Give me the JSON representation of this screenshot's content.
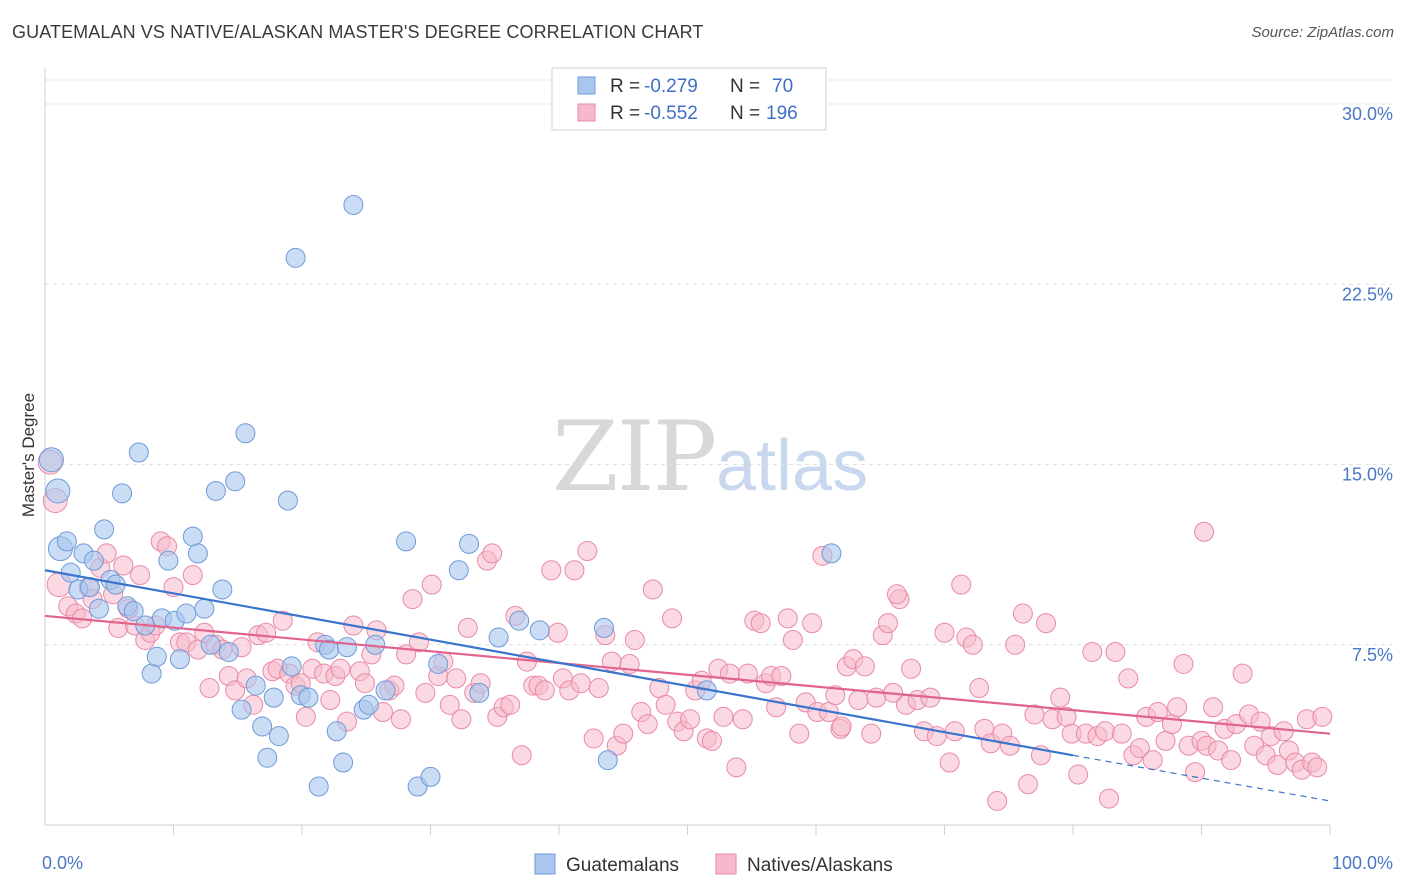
{
  "title": "GUATEMALAN VS NATIVE/ALASKAN MASTER'S DEGREE CORRELATION CHART",
  "source": "Source: ZipAtlas.com",
  "watermark": {
    "part1": "ZIP",
    "part2": "atlas"
  },
  "colors": {
    "guatemalan_fill": "#a9c6ee",
    "guatemalan_stroke": "#6f9ad8",
    "guatemalan_line": "#3a74cc",
    "native_fill": "#f6b9cb",
    "native_stroke": "#e98aa8",
    "native_line": "#e0648e",
    "tick_label": "#4a78c4",
    "grid": "#dedede"
  },
  "legend": {
    "rows": [
      {
        "r_label": "R =",
        "r_value": "-0.279",
        "n_label": "N =",
        "n_value": "70"
      },
      {
        "r_label": "R =",
        "r_value": "-0.552",
        "n_label": "N =",
        "n_value": "196"
      }
    ]
  },
  "chart_data": {
    "type": "scatter",
    "title": "GUATEMALAN VS NATIVE/ALASKAN MASTER'S DEGREE CORRELATION CHART",
    "xlabel": "",
    "ylabel": "Master's Degree",
    "xlim": [
      0,
      100
    ],
    "ylim": [
      0,
      31
    ],
    "y_ticks": [
      {
        "value": 7.5,
        "label": "7.5%"
      },
      {
        "value": 15.0,
        "label": "15.0%"
      },
      {
        "value": 22.5,
        "label": "22.5%"
      },
      {
        "value": 30.0,
        "label": "30.0%"
      }
    ],
    "x_tick_labels": [
      {
        "value": 0,
        "label": "0.0%"
      },
      {
        "value": 100,
        "label": "100.0%"
      }
    ],
    "grid": true,
    "legend_position": "top-center",
    "series": [
      {
        "name": "Guatemalans",
        "trend": {
          "x0": 0,
          "y0": 10.6,
          "x1": 80,
          "y1": 2.9,
          "dashed_to_x": 100,
          "dashed_to_y": 1.0
        },
        "points": [
          [
            0.5,
            15.2
          ],
          [
            1,
            13.9
          ],
          [
            1.2,
            11.5
          ],
          [
            1.7,
            11.8
          ],
          [
            2,
            10.5
          ],
          [
            2.6,
            9.8
          ],
          [
            3,
            11.3
          ],
          [
            3.5,
            9.9
          ],
          [
            3.8,
            11.0
          ],
          [
            4.2,
            9.0
          ],
          [
            4.6,
            12.3
          ],
          [
            5.1,
            10.2
          ],
          [
            5.5,
            10.0
          ],
          [
            6,
            13.8
          ],
          [
            6.4,
            9.1
          ],
          [
            6.9,
            8.9
          ],
          [
            7.3,
            15.5
          ],
          [
            7.8,
            8.3
          ],
          [
            8.3,
            6.3
          ],
          [
            8.7,
            7.0
          ],
          [
            9.1,
            8.6
          ],
          [
            9.6,
            11.0
          ],
          [
            10.1,
            8.5
          ],
          [
            10.5,
            6.9
          ],
          [
            11,
            8.8
          ],
          [
            11.5,
            12.0
          ],
          [
            11.9,
            11.3
          ],
          [
            12.4,
            9.0
          ],
          [
            12.9,
            7.5
          ],
          [
            13.3,
            13.9
          ],
          [
            13.8,
            9.8
          ],
          [
            14.3,
            7.2
          ],
          [
            14.8,
            14.3
          ],
          [
            15.3,
            4.8
          ],
          [
            15.6,
            16.3
          ],
          [
            16.4,
            5.8
          ],
          [
            16.9,
            4.1
          ],
          [
            17.3,
            2.8
          ],
          [
            17.8,
            5.3
          ],
          [
            18.2,
            3.7
          ],
          [
            18.9,
            13.5
          ],
          [
            19.2,
            6.6
          ],
          [
            19.5,
            23.6
          ],
          [
            19.9,
            5.4
          ],
          [
            20.5,
            5.3
          ],
          [
            21.3,
            1.6
          ],
          [
            21.8,
            7.5
          ],
          [
            22.1,
            7.3
          ],
          [
            22.7,
            3.9
          ],
          [
            23.2,
            2.6
          ],
          [
            23.5,
            7.4
          ],
          [
            24,
            25.8
          ],
          [
            24.8,
            4.8
          ],
          [
            25.2,
            5.0
          ],
          [
            25.7,
            7.5
          ],
          [
            26.5,
            5.6
          ],
          [
            28.1,
            11.8
          ],
          [
            29,
            1.6
          ],
          [
            30,
            2.0
          ],
          [
            30.6,
            6.7
          ],
          [
            32.2,
            10.6
          ],
          [
            33,
            11.7
          ],
          [
            33.8,
            5.5
          ],
          [
            35.3,
            7.8
          ],
          [
            36.9,
            8.5
          ],
          [
            38.5,
            8.1
          ],
          [
            43.5,
            8.2
          ],
          [
            43.8,
            2.7
          ],
          [
            51.5,
            5.6
          ],
          [
            61.2,
            11.3
          ]
        ]
      },
      {
        "name": "Natives/Alaskans",
        "trend": {
          "x0": 0,
          "y0": 8.7,
          "x1": 100,
          "y1": 3.8
        },
        "points": [
          [
            0.4,
            15.1
          ],
          [
            0.8,
            13.5
          ],
          [
            1.1,
            10.0
          ],
          [
            1.8,
            9.1
          ],
          [
            2.4,
            8.8
          ],
          [
            2.9,
            8.6
          ],
          [
            3.4,
            9.9
          ],
          [
            3.7,
            9.4
          ],
          [
            4.3,
            10.7
          ],
          [
            4.8,
            11.3
          ],
          [
            5.3,
            9.6
          ],
          [
            5.7,
            8.2
          ],
          [
            6.1,
            10.8
          ],
          [
            6.5,
            9.0
          ],
          [
            7,
            8.3
          ],
          [
            7.4,
            10.4
          ],
          [
            7.8,
            7.7
          ],
          [
            8.2,
            8.0
          ],
          [
            8.6,
            8.3
          ],
          [
            9,
            11.8
          ],
          [
            9.5,
            11.6
          ],
          [
            10,
            9.9
          ],
          [
            10.5,
            7.6
          ],
          [
            11,
            7.6
          ],
          [
            11.5,
            10.4
          ],
          [
            11.9,
            7.3
          ],
          [
            12.4,
            8.0
          ],
          [
            12.8,
            5.7
          ],
          [
            13.3,
            7.5
          ],
          [
            13.8,
            7.3
          ],
          [
            14.3,
            6.2
          ],
          [
            14.8,
            5.6
          ],
          [
            15.3,
            7.4
          ],
          [
            15.7,
            6.1
          ],
          [
            16.2,
            5.0
          ],
          [
            16.6,
            7.9
          ],
          [
            17.2,
            8.0
          ],
          [
            17.7,
            6.4
          ],
          [
            18.1,
            6.5
          ],
          [
            18.5,
            8.5
          ],
          [
            19,
            6.3
          ],
          [
            19.5,
            5.8
          ],
          [
            19.9,
            5.9
          ],
          [
            20.3,
            4.5
          ],
          [
            20.8,
            6.5
          ],
          [
            21.2,
            7.6
          ],
          [
            21.7,
            6.3
          ],
          [
            22.2,
            5.2
          ],
          [
            22.6,
            6.2
          ],
          [
            23,
            6.5
          ],
          [
            23.5,
            4.3
          ],
          [
            24,
            8.3
          ],
          [
            24.5,
            6.4
          ],
          [
            24.9,
            5.9
          ],
          [
            25.4,
            7.1
          ],
          [
            25.8,
            8.1
          ],
          [
            26.3,
            4.7
          ],
          [
            26.8,
            5.6
          ],
          [
            27.2,
            5.8
          ],
          [
            27.7,
            4.4
          ],
          [
            28.1,
            7.1
          ],
          [
            28.6,
            9.4
          ],
          [
            29.1,
            7.6
          ],
          [
            29.6,
            5.5
          ],
          [
            30.1,
            10.0
          ],
          [
            30.6,
            6.2
          ],
          [
            31,
            6.8
          ],
          [
            31.5,
            5.0
          ],
          [
            32,
            6.1
          ],
          [
            32.4,
            4.4
          ],
          [
            32.9,
            8.2
          ],
          [
            33.4,
            5.5
          ],
          [
            33.9,
            5.9
          ],
          [
            34.4,
            11.0
          ],
          [
            34.8,
            11.3
          ],
          [
            35.2,
            4.5
          ],
          [
            35.7,
            4.9
          ],
          [
            36.2,
            5.0
          ],
          [
            36.6,
            8.7
          ],
          [
            37.1,
            2.9
          ],
          [
            37.5,
            6.8
          ],
          [
            38,
            5.8
          ],
          [
            38.4,
            5.8
          ],
          [
            38.9,
            5.6
          ],
          [
            39.4,
            10.6
          ],
          [
            39.9,
            8.0
          ],
          [
            40.3,
            6.1
          ],
          [
            40.8,
            5.6
          ],
          [
            41.2,
            10.6
          ],
          [
            41.7,
            5.9
          ],
          [
            42.2,
            11.4
          ],
          [
            42.7,
            3.6
          ],
          [
            43.1,
            5.7
          ],
          [
            43.6,
            7.9
          ],
          [
            44.1,
            6.8
          ],
          [
            44.5,
            3.3
          ],
          [
            45,
            3.8
          ],
          [
            45.5,
            6.7
          ],
          [
            45.9,
            7.7
          ],
          [
            46.4,
            4.7
          ],
          [
            46.9,
            4.2
          ],
          [
            47.3,
            9.8
          ],
          [
            47.8,
            5.7
          ],
          [
            48.3,
            5.0
          ],
          [
            48.8,
            8.6
          ],
          [
            49.2,
            4.3
          ],
          [
            49.7,
            3.9
          ],
          [
            50.2,
            4.4
          ],
          [
            50.6,
            5.6
          ],
          [
            51.1,
            6.0
          ],
          [
            51.5,
            3.6
          ],
          [
            51.9,
            3.5
          ],
          [
            52.4,
            6.5
          ],
          [
            52.8,
            4.5
          ],
          [
            53.3,
            6.3
          ],
          [
            53.8,
            2.4
          ],
          [
            54.3,
            4.4
          ],
          [
            54.7,
            6.3
          ],
          [
            55.2,
            8.5
          ],
          [
            55.7,
            8.4
          ],
          [
            56.1,
            5.9
          ],
          [
            56.5,
            6.2
          ],
          [
            56.9,
            4.9
          ],
          [
            57.3,
            6.2
          ],
          [
            57.8,
            8.6
          ],
          [
            58.2,
            7.7
          ],
          [
            58.7,
            3.8
          ],
          [
            59.2,
            5.1
          ],
          [
            59.7,
            8.4
          ],
          [
            60.1,
            4.7
          ],
          [
            60.5,
            11.2
          ],
          [
            61,
            4.7
          ],
          [
            61.5,
            5.4
          ],
          [
            61.9,
            4.0
          ],
          [
            62.4,
            6.6
          ],
          [
            62.9,
            6.9
          ],
          [
            63.3,
            5.2
          ],
          [
            63.8,
            6.6
          ],
          [
            64.3,
            3.8
          ],
          [
            64.7,
            5.3
          ],
          [
            65.2,
            7.9
          ],
          [
            65.6,
            8.4
          ],
          [
            66,
            5.5
          ],
          [
            66.5,
            9.4
          ],
          [
            67,
            5.0
          ],
          [
            67.4,
            6.5
          ],
          [
            67.9,
            5.2
          ],
          [
            68.4,
            3.9
          ],
          [
            68.9,
            5.3
          ],
          [
            69.4,
            3.7
          ],
          [
            70,
            8.0
          ],
          [
            70.4,
            2.6
          ],
          [
            70.8,
            3.9
          ],
          [
            71.3,
            10.0
          ],
          [
            71.7,
            7.8
          ],
          [
            72.2,
            7.5
          ],
          [
            72.7,
            5.7
          ],
          [
            73.1,
            4.0
          ],
          [
            73.6,
            3.4
          ],
          [
            74.1,
            1.0
          ],
          [
            74.5,
            3.8
          ],
          [
            75.1,
            3.3
          ],
          [
            75.5,
            7.5
          ],
          [
            76.1,
            8.8
          ],
          [
            76.5,
            1.7
          ],
          [
            77,
            4.6
          ],
          [
            77.5,
            2.9
          ],
          [
            77.9,
            8.4
          ],
          [
            78.4,
            4.4
          ],
          [
            79,
            5.3
          ],
          [
            79.5,
            4.5
          ],
          [
            79.9,
            3.8
          ],
          [
            80.4,
            2.1
          ],
          [
            81,
            3.8
          ],
          [
            81.5,
            7.2
          ],
          [
            81.9,
            3.7
          ],
          [
            82.5,
            3.9
          ],
          [
            82.8,
            1.1
          ],
          [
            83.3,
            7.2
          ],
          [
            83.8,
            3.8
          ],
          [
            84.3,
            6.1
          ],
          [
            84.7,
            2.9
          ],
          [
            85.2,
            3.2
          ],
          [
            85.7,
            4.5
          ],
          [
            86.2,
            2.7
          ],
          [
            86.6,
            4.7
          ],
          [
            87.2,
            3.5
          ],
          [
            87.7,
            4.2
          ],
          [
            88.1,
            4.9
          ],
          [
            88.6,
            6.7
          ],
          [
            89,
            3.3
          ],
          [
            89.5,
            2.2
          ],
          [
            90,
            3.5
          ],
          [
            90.4,
            3.3
          ],
          [
            90.9,
            4.9
          ],
          [
            91.3,
            3.1
          ],
          [
            91.8,
            4.0
          ],
          [
            92.3,
            2.7
          ],
          [
            92.7,
            4.2
          ],
          [
            93.2,
            6.3
          ],
          [
            93.7,
            4.6
          ],
          [
            94.1,
            3.3
          ],
          [
            94.6,
            4.3
          ],
          [
            95,
            2.9
          ],
          [
            95.4,
            3.7
          ],
          [
            95.9,
            2.5
          ],
          [
            96.4,
            3.9
          ],
          [
            96.8,
            3.1
          ],
          [
            97.3,
            2.6
          ],
          [
            97.8,
            2.3
          ],
          [
            98.2,
            4.4
          ],
          [
            98.6,
            2.6
          ],
          [
            99,
            2.4
          ],
          [
            99.4,
            4.5
          ]
        ]
      }
    ],
    "extra_points": {
      "Guatemalans": [],
      "Natives/Alaskans": [
        [
          62,
          4.1
        ],
        [
          66.3,
          9.6
        ],
        [
          90.2,
          12.2
        ]
      ]
    }
  }
}
